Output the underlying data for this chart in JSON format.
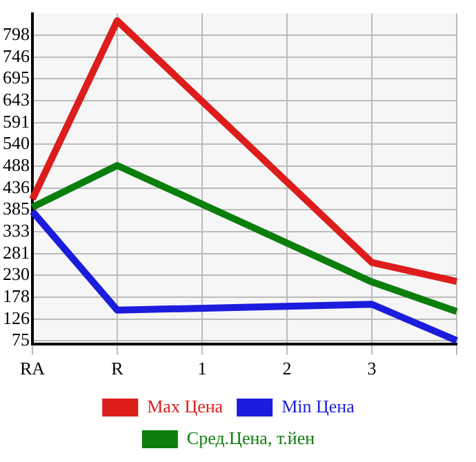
{
  "chart_data": {
    "type": "line",
    "categories": [
      "RA",
      "R",
      "1",
      "2",
      "3",
      null
    ],
    "series": [
      {
        "name": "Max Цена",
        "color": "#dd1c1c",
        "values": [
          410,
          833,
          null,
          null,
          260,
          215
        ]
      },
      {
        "name": "Min Цена",
        "color": "#1c1cdd",
        "values": [
          381,
          147,
          null,
          null,
          161,
          75
        ]
      },
      {
        "name": "Сред.Цена, т.йен",
        "color": "#0c7e0c",
        "values": [
          391,
          490,
          null,
          null,
          214,
          144
        ]
      }
    ],
    "ylim": [
      67,
      850
    ],
    "yticks": [
      75,
      126,
      178,
      230,
      281,
      333,
      385,
      436,
      488,
      540,
      591,
      643,
      695,
      746,
      798
    ],
    "grid": true,
    "legend": "bottom",
    "marker": "none",
    "line_style": "solid"
  }
}
